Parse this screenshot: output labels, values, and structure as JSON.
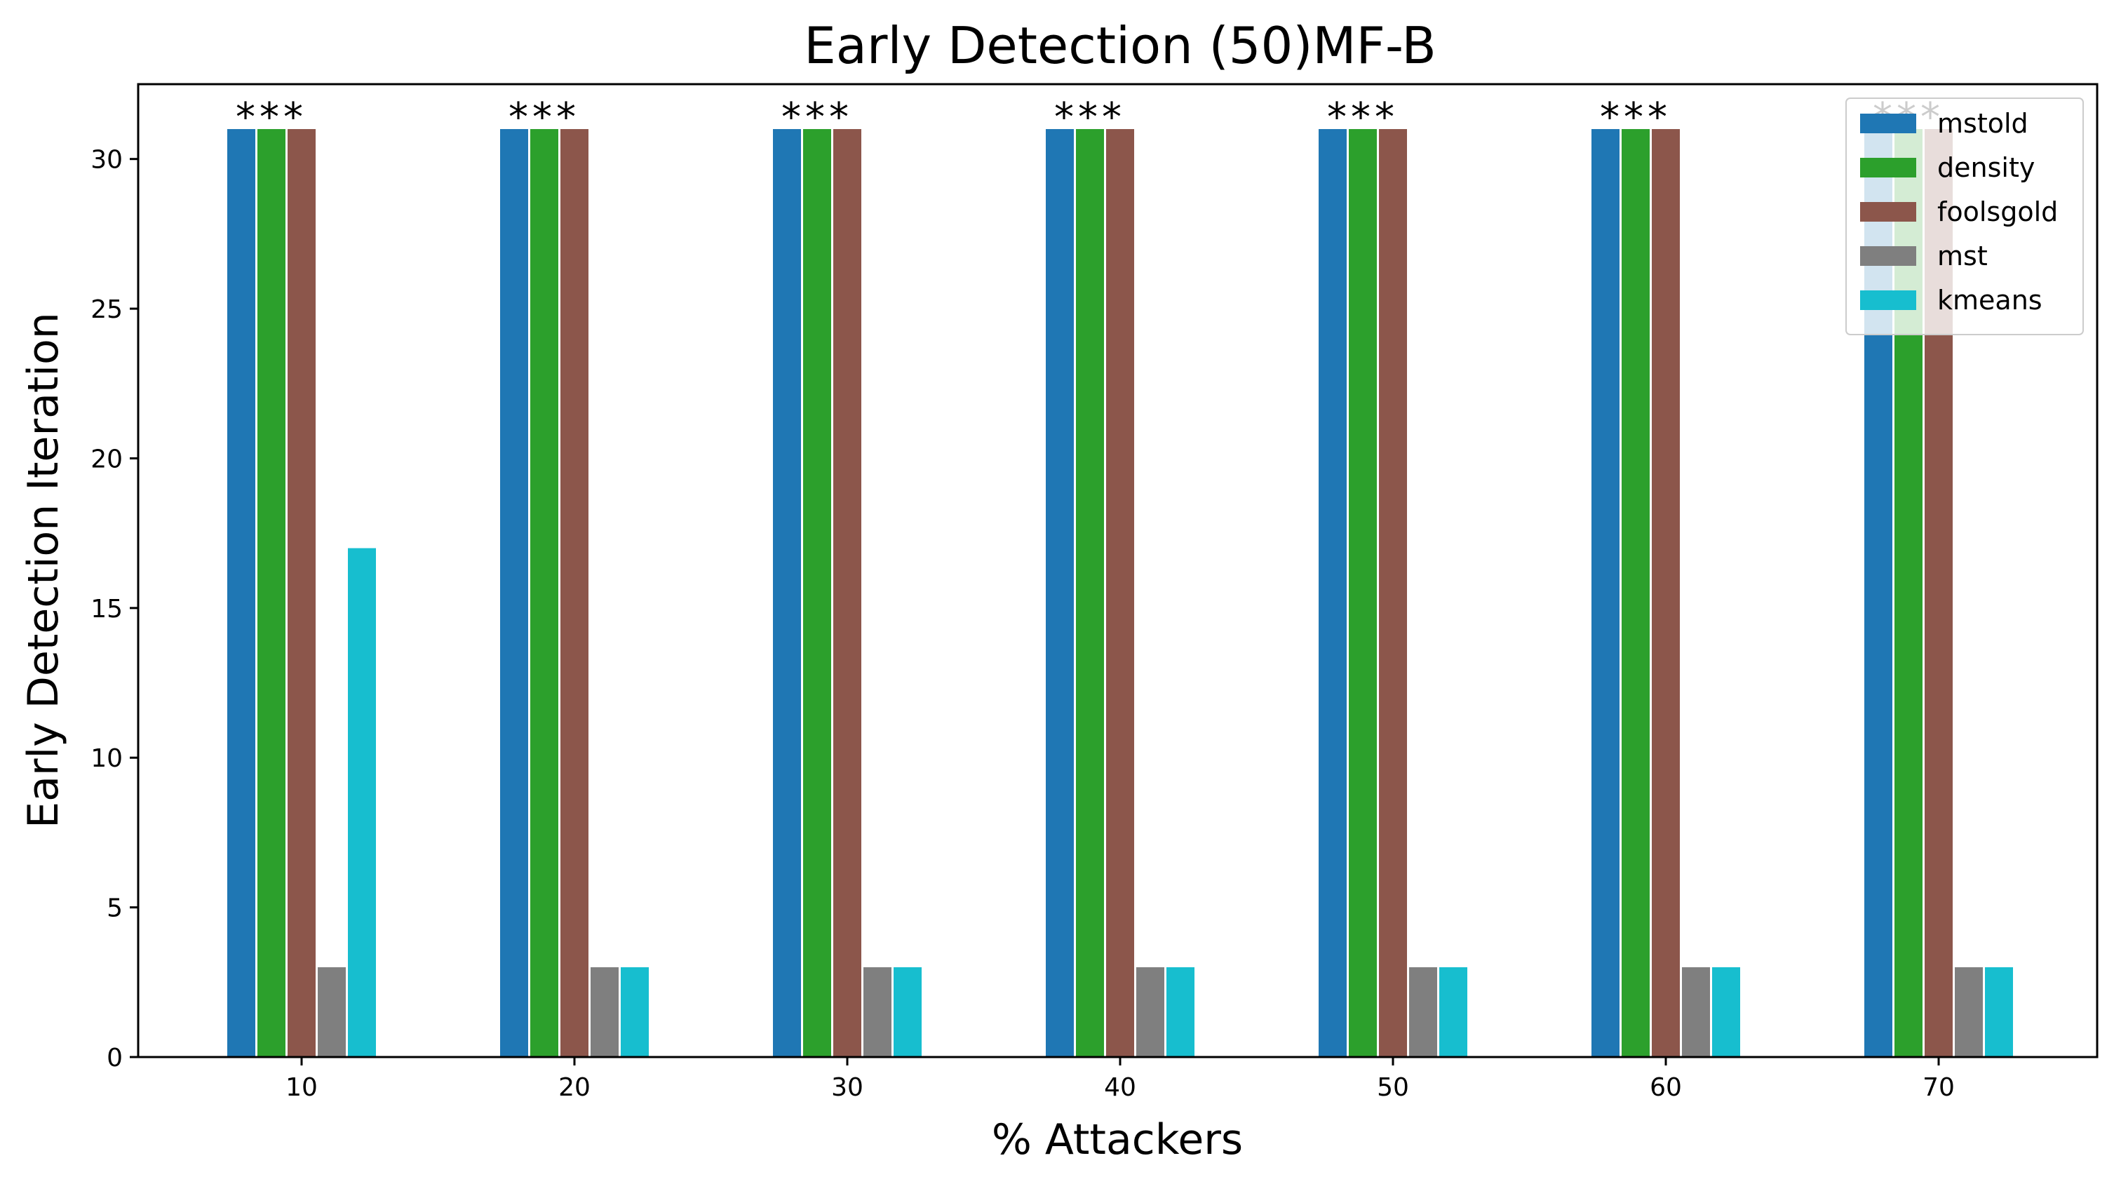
{
  "chart_data": {
    "type": "bar",
    "title": "Early Detection (50)MF-B",
    "xlabel": "% Attackers",
    "ylabel": "Early Detection Iteration",
    "categories": [
      "10",
      "20",
      "30",
      "40",
      "50",
      "60",
      "70"
    ],
    "ylim": [
      0,
      32.5
    ],
    "yticks": [
      0,
      5,
      10,
      15,
      20,
      25,
      30
    ],
    "grid": false,
    "legend_position": "top-right",
    "series": [
      {
        "name": "mstold",
        "color": "#1f77b4",
        "values": [
          31,
          31,
          31,
          31,
          31,
          31,
          31
        ]
      },
      {
        "name": "density",
        "color": "#2ca02c",
        "values": [
          31,
          31,
          31,
          31,
          31,
          31,
          31
        ]
      },
      {
        "name": "foolsgold",
        "color": "#8c564b",
        "values": [
          31,
          31,
          31,
          31,
          31,
          31,
          31
        ]
      },
      {
        "name": "mst",
        "color": "#7f7f7f",
        "values": [
          3,
          3,
          3,
          3,
          3,
          3,
          3
        ]
      },
      {
        "name": "kmeans",
        "color": "#17becf",
        "values": [
          17,
          3,
          3,
          3,
          3,
          3,
          3
        ]
      }
    ],
    "annotations": [
      {
        "text": "***",
        "category": "10",
        "y": 31
      },
      {
        "text": "***",
        "category": "20",
        "y": 31
      },
      {
        "text": "***",
        "category": "30",
        "y": 31
      },
      {
        "text": "***",
        "category": "40",
        "y": 31
      },
      {
        "text": "***",
        "category": "50",
        "y": 31
      },
      {
        "text": "***",
        "category": "60",
        "y": 31
      },
      {
        "text": "***",
        "category": "70",
        "y": 31
      }
    ]
  }
}
